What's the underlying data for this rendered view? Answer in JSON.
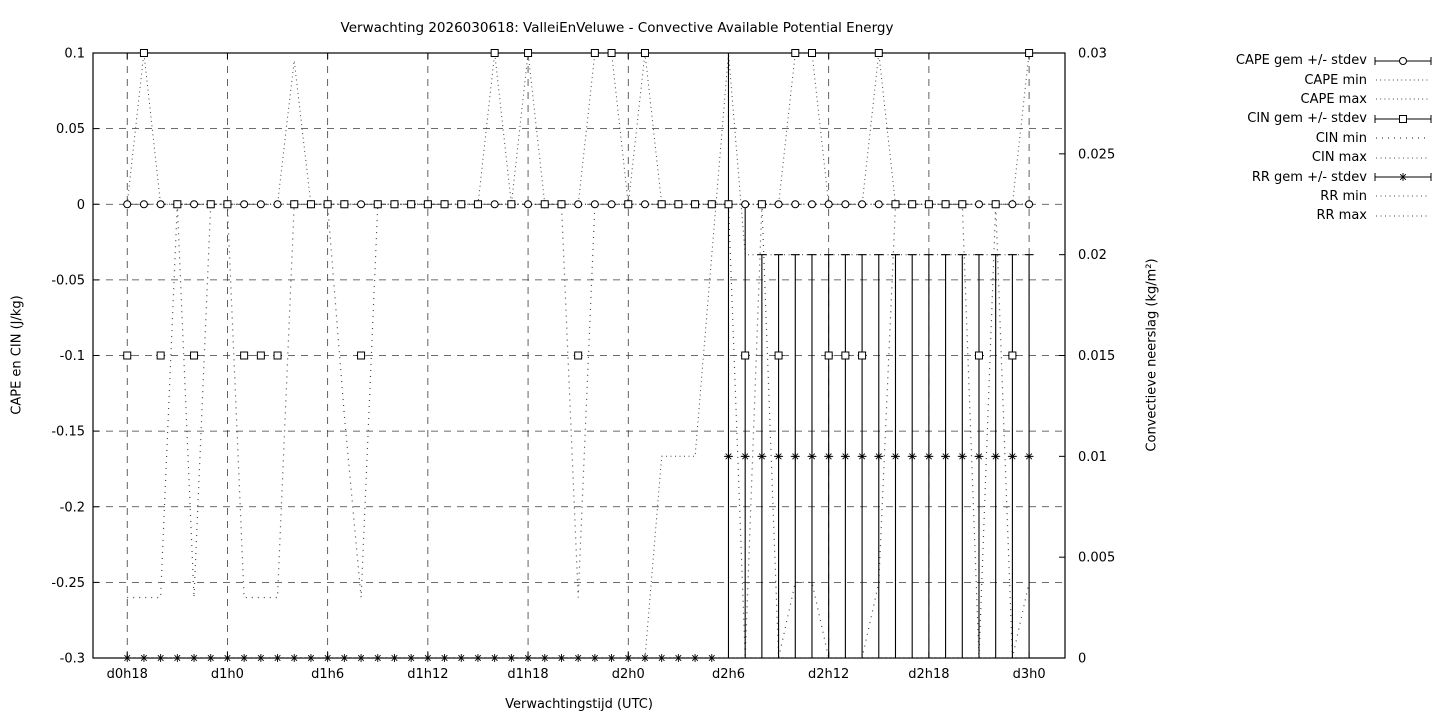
{
  "chart_data": {
    "type": "line",
    "title": "Verwachting 2026030618: ValleiEnVeluwe - Convective Available Potential Energy",
    "xlabel": "Verwachtingstijd (UTC)",
    "ylabel_left": "CAPE en CIN (J/kg)",
    "ylabel_right": "Convectieve neerslag (kg/m²)",
    "grid": true,
    "n_points": 55,
    "x_hours_from_start": "hourly points, hour 0 = d0h18",
    "x_domain_hours": [
      -2.05,
      56.15
    ],
    "x_ticks": {
      "hours": [
        0,
        6,
        12,
        18,
        24,
        30,
        36,
        42,
        48,
        54
      ],
      "labels": [
        "d0h18",
        "d1h0",
        "d1h6",
        "d1h12",
        "d1h18",
        "d2h0",
        "d2h6",
        "d2h12",
        "d2h18",
        "d3h0"
      ]
    },
    "ylim_left": [
      -0.3,
      0.1
    ],
    "yticks_left": {
      "values": [
        0.1,
        0.05,
        0,
        -0.05,
        -0.1,
        -0.15,
        -0.2,
        -0.25,
        -0.3
      ],
      "labels": [
        "0.1",
        "0.05",
        "0",
        "-0.05",
        "-0.1",
        "-0.15",
        "-0.2",
        "-0.25",
        "-0.3"
      ]
    },
    "ylim_right": [
      0,
      0.03
    ],
    "yticks_right": {
      "values": [
        0.03,
        0.025,
        0.02,
        0.015,
        0.01,
        0.005,
        0
      ],
      "labels": [
        "0.03",
        "0.025",
        "0.02",
        "0.015",
        "0.01",
        "0.005",
        "0"
      ]
    },
    "legend_position": "outside-right-top",
    "series": [
      {
        "name": "CAPE gem +/- stdev",
        "style": "errorbar",
        "marker": "circle",
        "axis": "left",
        "values": [
          0,
          0,
          0,
          0,
          0,
          0,
          0,
          0,
          0,
          0,
          0,
          0,
          0,
          0,
          0,
          0,
          0,
          0,
          0,
          0,
          0,
          0,
          0,
          0,
          0,
          0,
          0,
          0,
          0,
          0,
          0,
          0,
          0,
          0,
          0,
          0,
          0,
          0,
          0,
          0,
          0,
          0,
          0,
          0,
          0,
          0,
          0,
          0,
          0,
          0,
          0,
          0,
          0,
          0,
          0
        ]
      },
      {
        "name": "CAPE min",
        "style": "dots",
        "marker": null,
        "axis": "left",
        "dot_gap": 3.2,
        "values": [
          0,
          0,
          0,
          0,
          0,
          0,
          0,
          0,
          0,
          0,
          0,
          0,
          0,
          0,
          0,
          0,
          0,
          0,
          0,
          0,
          0,
          0,
          0,
          0,
          0,
          0,
          0,
          0,
          0,
          0,
          0,
          0,
          0,
          0,
          0,
          0,
          0,
          0,
          0,
          0,
          0,
          0,
          0,
          0,
          0,
          0,
          0,
          0,
          0,
          0,
          0,
          0,
          0,
          0,
          0
        ]
      },
      {
        "name": "CAPE max",
        "style": "dots",
        "marker": null,
        "axis": "left",
        "dot_gap": 3.2,
        "values": [
          0,
          0,
          0,
          0,
          0,
          0,
          0,
          0,
          0,
          0,
          0,
          0,
          0,
          0,
          0,
          0,
          0,
          0,
          0,
          0,
          0,
          0,
          0,
          0,
          0,
          0,
          0,
          0,
          0,
          0,
          0,
          0,
          0,
          0,
          0,
          0,
          0,
          0,
          0,
          0,
          0,
          0,
          0,
          0,
          0,
          0,
          0,
          0,
          0,
          0,
          0,
          0,
          0,
          0,
          0
        ]
      },
      {
        "name": "CIN gem +/- stdev",
        "style": "errorbar",
        "marker": "square",
        "axis": "left",
        "values": [
          -0.1,
          0.1,
          -0.1,
          0,
          -0.1,
          0,
          0,
          -0.1,
          -0.1,
          -0.1,
          0,
          0,
          0,
          0,
          -0.1,
          0,
          0,
          0,
          0,
          0,
          0,
          0,
          0.1,
          0,
          0.1,
          0,
          0,
          -0.1,
          0.1,
          0.1,
          0,
          0.1,
          0,
          0,
          0,
          0,
          0,
          -0.1,
          0,
          -0.1,
          0.1,
          0.1,
          -0.1,
          -0.1,
          -0.1,
          0.1,
          0,
          0,
          0,
          0,
          0,
          -0.1,
          0,
          -0.1,
          0.1
        ]
      },
      {
        "name": "CIN min",
        "style": "dots",
        "marker": null,
        "axis": "left",
        "dot_gap": 5,
        "values": [
          -0.26,
          -0.26,
          -0.26,
          0,
          -0.26,
          0,
          0,
          -0.26,
          -0.26,
          -0.26,
          0,
          0,
          0,
          -0.14,
          -0.26,
          0,
          0,
          0,
          0,
          0,
          0,
          0,
          0,
          0,
          0,
          0,
          0,
          -0.26,
          0,
          0,
          0,
          0,
          0,
          0,
          0,
          0,
          0,
          -0.3,
          0,
          -0.3,
          -0.25,
          -0.25,
          -0.3,
          -0.3,
          -0.3,
          -0.25,
          0,
          0,
          0,
          0,
          0,
          -0.3,
          0,
          -0.3,
          -0.25
        ]
      },
      {
        "name": "CIN max",
        "style": "dots",
        "marker": null,
        "axis": "left",
        "dot_gap": 3.5,
        "values": [
          0,
          0.1,
          0,
          0,
          0,
          0,
          0,
          0,
          0,
          0,
          0.095,
          0,
          0,
          0,
          0,
          0,
          0,
          0,
          0,
          0,
          0,
          0,
          0.1,
          0,
          0.1,
          0,
          0,
          0,
          0.1,
          0.1,
          0,
          0.1,
          0,
          0,
          0,
          0,
          0,
          0,
          0,
          0,
          0.1,
          0.1,
          0,
          0,
          0,
          0.1,
          0,
          0,
          0,
          0,
          0,
          0,
          0,
          0,
          0.1
        ]
      },
      {
        "name": "RR gem +/- stdev",
        "style": "errorbar",
        "marker": "star",
        "axis": "right",
        "values": [
          0,
          0,
          0,
          0,
          0,
          0,
          0,
          0,
          0,
          0,
          0,
          0,
          0,
          0,
          0,
          0,
          0,
          0,
          0,
          0,
          0,
          0,
          0,
          0,
          0,
          0,
          0,
          0,
          0,
          0,
          0,
          0,
          0,
          0,
          0,
          0,
          0.01,
          0.01,
          0.01,
          0.01,
          0.01,
          0.01,
          0.01,
          0.01,
          0.01,
          0.01,
          0.01,
          0.01,
          0.01,
          0.01,
          0.01,
          0.01,
          0.01,
          0.01,
          0.01
        ],
        "bar_low": [
          0,
          0,
          0,
          0,
          0,
          0,
          0,
          0,
          0,
          0,
          0,
          0,
          0,
          0,
          0,
          0,
          0,
          0,
          0,
          0,
          0,
          0,
          0,
          0,
          0,
          0,
          0,
          0,
          0,
          0,
          0,
          0,
          0,
          0,
          0,
          0,
          0,
          0,
          0,
          0,
          0,
          0,
          0,
          0,
          0,
          0,
          0,
          0,
          0,
          0,
          0,
          0,
          0,
          0,
          0
        ],
        "bar_high": [
          0,
          0,
          0,
          0,
          0,
          0,
          0,
          0,
          0,
          0,
          0,
          0,
          0,
          0,
          0,
          0,
          0,
          0,
          0,
          0,
          0,
          0,
          0,
          0,
          0,
          0,
          0,
          0,
          0,
          0,
          0,
          0,
          0,
          0,
          0,
          0,
          0.0335,
          0.0225,
          0.02,
          0.02,
          0.02,
          0.02,
          0.02,
          0.02,
          0.02,
          0.02,
          0.02,
          0.02,
          0.02,
          0.02,
          0.02,
          0.02,
          0.02,
          0.02,
          0.02
        ]
      },
      {
        "name": "RR min",
        "style": "dots",
        "marker": null,
        "axis": "right",
        "dot_gap": 3.5,
        "values": [
          0,
          0,
          0,
          0,
          0,
          0,
          0,
          0,
          0,
          0,
          0,
          0,
          0,
          0,
          0,
          0,
          0,
          0,
          0,
          0,
          0,
          0,
          0,
          0,
          0,
          0,
          0,
          0,
          0,
          0,
          0,
          0,
          0,
          0,
          0,
          0,
          0,
          0,
          0,
          0,
          0,
          0,
          0,
          0,
          0,
          0,
          0,
          0,
          0,
          0,
          0,
          0,
          0,
          0,
          0
        ]
      },
      {
        "name": "RR max",
        "style": "dots",
        "marker": null,
        "axis": "right",
        "dot_gap": 3.5,
        "values": [
          0,
          0,
          0,
          0,
          0,
          0,
          0,
          0,
          0,
          0,
          0,
          0,
          0,
          0,
          0,
          0,
          0,
          0,
          0,
          0,
          0,
          0,
          0,
          0,
          0,
          0,
          0,
          0,
          0,
          0,
          0,
          0,
          0.01,
          0.01,
          0.01,
          0.02,
          0.03,
          0.02,
          0.02,
          0.02,
          0.02,
          0.02,
          0.02,
          0.02,
          0.02,
          0.02,
          0.02,
          0.02,
          0.02,
          0.02,
          0.02,
          0.02,
          0.02,
          0.02,
          0.02
        ]
      }
    ]
  },
  "colors": {
    "foreground": "#000000",
    "background": "#ffffff",
    "dots": "#444444",
    "grid": "#1a1a1a"
  }
}
